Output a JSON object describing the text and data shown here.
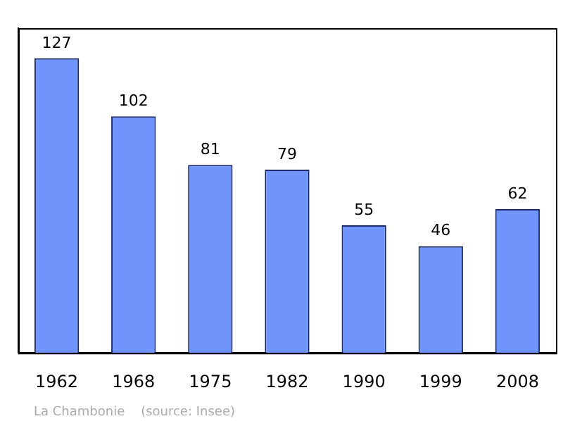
{
  "chart_data": {
    "type": "bar",
    "categories": [
      "1962",
      "1968",
      "1975",
      "1982",
      "1990",
      "1999",
      "2008"
    ],
    "values": [
      127,
      102,
      81,
      79,
      55,
      46,
      62
    ],
    "color": "#6f94fc",
    "data_labels": true,
    "grid": false,
    "legend": false,
    "annotations": [
      "La Chambonie    (source: Insee)"
    ]
  }
}
